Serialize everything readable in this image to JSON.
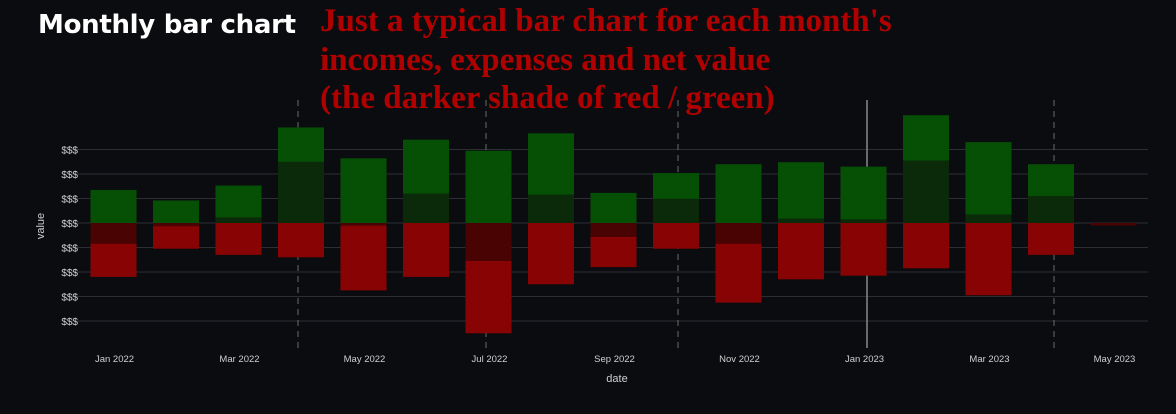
{
  "header": {
    "title": "Monthly bar chart"
  },
  "annotation": {
    "lines": [
      "Just a typical bar chart for each month's",
      "incomes, expenses and net value",
      "(the darker shade of red / green)"
    ]
  },
  "colors": {
    "background": "#0b0c10",
    "income": "#055005",
    "expense": "#880303",
    "net_positive": "#0a2a0a",
    "net_negative": "#4a0303",
    "gridline": "#2c2e33",
    "annotation_text": "#b00000"
  },
  "chart_data": {
    "type": "bar",
    "barmode": "overlay",
    "xlabel": "date",
    "ylabel": "value",
    "ylim": [
      -4.6,
      4.0
    ],
    "y_ticks": [
      3,
      2,
      1,
      0,
      -1,
      -2,
      -3,
      -4
    ],
    "y_tick_label": "$$$",
    "x_tick_labels": [
      "Jan 2022",
      "Mar 2022",
      "May 2022",
      "Jul 2022",
      "Sep 2022",
      "Nov 2022",
      "Jan 2023",
      "Mar 2023",
      "May 2023"
    ],
    "categories": [
      "Jan 2022",
      "Feb 2022",
      "Mar 2022",
      "Apr 2022",
      "May 2022",
      "Jun 2022",
      "Jul 2022",
      "Aug 2022",
      "Sep 2022",
      "Oct 2022",
      "Nov 2022",
      "Dec 2022",
      "Jan 2023",
      "Feb 2023",
      "Mar 2023",
      "Apr 2023",
      "May 2023"
    ],
    "series": [
      {
        "name": "incomes",
        "values": [
          1.35,
          0.92,
          1.53,
          3.9,
          2.64,
          3.4,
          2.95,
          3.66,
          1.23,
          2.04,
          2.4,
          2.48,
          2.3,
          4.4,
          3.3,
          2.4,
          0.0
        ]
      },
      {
        "name": "expenses",
        "values": [
          -2.2,
          -1.05,
          -1.3,
          -1.4,
          -2.75,
          -2.2,
          -4.5,
          -2.5,
          -1.8,
          -1.05,
          -3.25,
          -2.3,
          -2.15,
          -1.85,
          -2.95,
          -1.3,
          -0.1
        ]
      },
      {
        "name": "net",
        "values": [
          -0.85,
          -0.13,
          0.23,
          2.5,
          -0.11,
          1.2,
          -1.55,
          1.16,
          -0.57,
          0.99,
          -0.85,
          0.18,
          0.15,
          2.55,
          0.35,
          1.1,
          -0.1
        ]
      }
    ],
    "grid": true,
    "legend": "none"
  }
}
